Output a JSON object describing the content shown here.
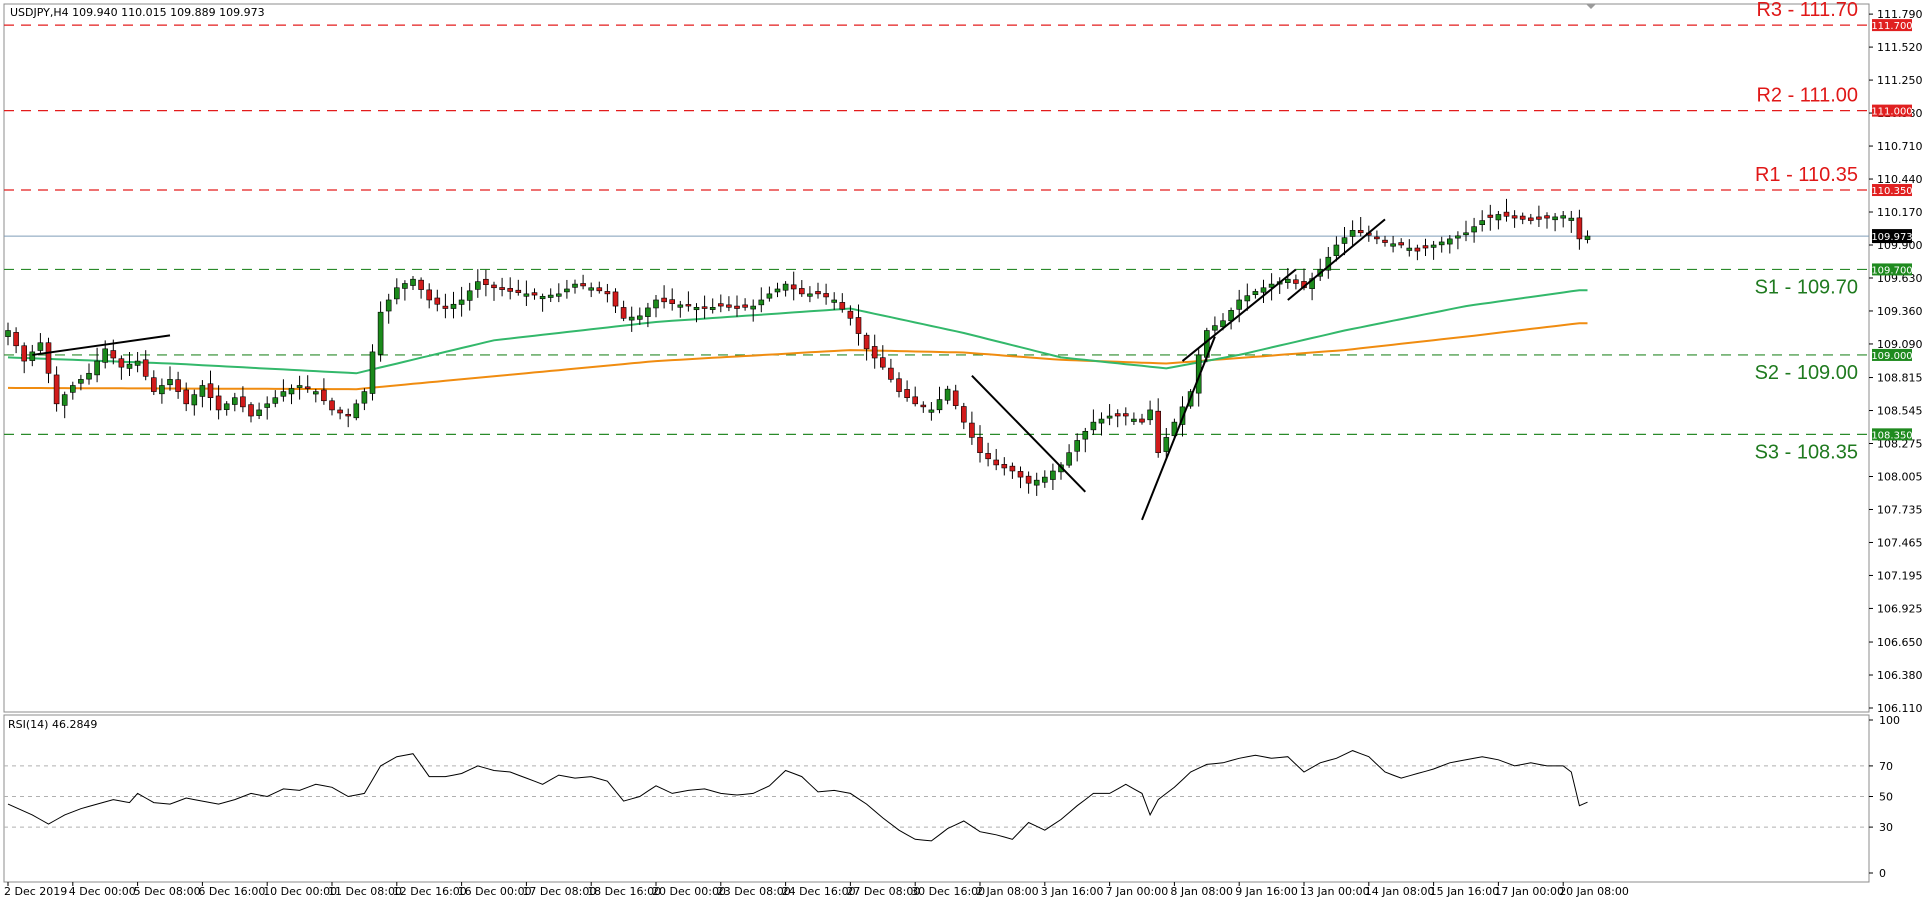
{
  "header": {
    "symbol_info": "USDJPY,H4  109.940 110.015 109.889 109.973",
    "rsi_label": "RSI(14) 46.2849"
  },
  "colors": {
    "bull": "#1b8a1b",
    "bear": "#d11b1b",
    "wick": "#000000",
    "sma_fast": "#33b86b",
    "sma_slow": "#f08c10",
    "resistance": "#e31c1c",
    "support": "#2a8a2a",
    "current": "#7f9db9",
    "rsi": "#000000"
  },
  "chart_data": [
    {
      "type": "candlestick",
      "title": "USDJPY,H4",
      "ylim": [
        106.11,
        111.84
      ],
      "y_ticks": [
        111.79,
        111.52,
        111.25,
        110.98,
        110.71,
        110.44,
        110.17,
        109.9,
        109.63,
        109.36,
        109.09,
        108.815,
        108.545,
        108.275,
        108.005,
        107.735,
        107.465,
        107.195,
        106.925,
        106.65,
        106.38,
        106.11
      ],
      "y_tick_labels": [
        "111.790",
        "111.520",
        "111.250",
        "110.980",
        "110.710",
        "110.440",
        "110.170",
        "109.900",
        "109.630",
        "109.360",
        "109.090",
        "108.815",
        "108.545",
        "108.275",
        "108.005",
        "107.735",
        "107.465",
        "107.195",
        "106.925",
        "106.650",
        "106.380",
        "106.110"
      ],
      "x_tick_labels": [
        "2 Dec 2019",
        "4 Dec 00:00",
        "5 Dec 08:00",
        "6 Dec 16:00",
        "10 Dec 00:00",
        "11 Dec 08:00",
        "12 Dec 16:00",
        "16 Dec 00:00",
        "17 Dec 08:00",
        "18 Dec 16:00",
        "20 Dec 00:00",
        "23 Dec 08:00",
        "24 Dec 16:00",
        "27 Dec 08:00",
        "30 Dec 16:00",
        "2 Jan 08:00",
        "3 Jan 16:00",
        "7 Jan 00:00",
        "8 Jan 08:00",
        "9 Jan 16:00",
        "13 Jan 00:00",
        "14 Jan 08:00",
        "15 Jan 16:00",
        "17 Jan 00:00",
        "20 Jan 08:00"
      ],
      "x_tick_bars": [
        0,
        8,
        16,
        24,
        32,
        40,
        48,
        56,
        64,
        72,
        80,
        88,
        96,
        104,
        112,
        120,
        128,
        136,
        144,
        152,
        160,
        168,
        176,
        184,
        192
      ],
      "levels": [
        {
          "label": "R3 - 111.70",
          "price": 111.7,
          "tag": "111.700",
          "kind": "resistance"
        },
        {
          "label": "R2 - 111.00",
          "price": 111.0,
          "tag": "111.000",
          "kind": "resistance"
        },
        {
          "label": "R1 - 110.35",
          "price": 110.35,
          "tag": "110.350",
          "kind": "resistance"
        },
        {
          "label": "S1 - 109.70",
          "price": 109.7,
          "tag": "109.700",
          "kind": "support"
        },
        {
          "label": "S2 - 109.00",
          "price": 109.0,
          "tag": "109.000",
          "kind": "support"
        },
        {
          "label": "S3 - 108.35",
          "price": 108.35,
          "tag": "108.350",
          "kind": "support"
        }
      ],
      "current_price": {
        "price": 109.973,
        "tag": "109.973"
      },
      "key_closes": [
        [
          0,
          109.2
        ],
        [
          2,
          108.95
        ],
        [
          4,
          109.1
        ],
        [
          6,
          108.6
        ],
        [
          8,
          108.75
        ],
        [
          10,
          108.85
        ],
        [
          12,
          109.05
        ],
        [
          14,
          108.9
        ],
        [
          16,
          108.95
        ],
        [
          18,
          108.7
        ],
        [
          20,
          108.8
        ],
        [
          22,
          108.6
        ],
        [
          24,
          108.75
        ],
        [
          26,
          108.55
        ],
        [
          28,
          108.65
        ],
        [
          30,
          108.5
        ],
        [
          32,
          108.6
        ],
        [
          34,
          108.7
        ],
        [
          36,
          108.75
        ],
        [
          38,
          108.7
        ],
        [
          40,
          108.55
        ],
        [
          42,
          108.5
        ],
        [
          44,
          108.7
        ],
        [
          46,
          109.35
        ],
        [
          48,
          109.55
        ],
        [
          50,
          109.62
        ],
        [
          52,
          109.45
        ],
        [
          54,
          109.38
        ],
        [
          56,
          109.45
        ],
        [
          58,
          109.6
        ],
        [
          60,
          109.55
        ],
        [
          62,
          109.52
        ],
        [
          64,
          109.5
        ],
        [
          66,
          109.48
        ],
        [
          68,
          109.5
        ],
        [
          70,
          109.58
        ],
        [
          72,
          109.55
        ],
        [
          74,
          109.5
        ],
        [
          76,
          109.3
        ],
        [
          78,
          109.32
        ],
        [
          80,
          109.45
        ],
        [
          82,
          109.42
        ],
        [
          84,
          109.4
        ],
        [
          86,
          109.38
        ],
        [
          88,
          109.4
        ],
        [
          90,
          109.38
        ],
        [
          92,
          109.4
        ],
        [
          94,
          109.5
        ],
        [
          96,
          109.58
        ],
        [
          98,
          109.5
        ],
        [
          100,
          109.5
        ],
        [
          102,
          109.45
        ],
        [
          104,
          109.3
        ],
        [
          106,
          109.05
        ],
        [
          108,
          108.9
        ],
        [
          110,
          108.7
        ],
        [
          112,
          108.6
        ],
        [
          114,
          108.55
        ],
        [
          116,
          108.72
        ],
        [
          118,
          108.45
        ],
        [
          120,
          108.2
        ],
        [
          122,
          108.1
        ],
        [
          124,
          108.05
        ],
        [
          126,
          107.95
        ],
        [
          128,
          108.0
        ],
        [
          130,
          108.1
        ],
        [
          132,
          108.3
        ],
        [
          134,
          108.45
        ],
        [
          136,
          108.5
        ],
        [
          138,
          108.5
        ],
        [
          140,
          108.45
        ],
        [
          141,
          108.55
        ],
        [
          142,
          108.2
        ],
        [
          144,
          108.45
        ],
        [
          146,
          108.7
        ],
        [
          147,
          109.0
        ],
        [
          148,
          109.2
        ],
        [
          150,
          109.28
        ],
        [
          152,
          109.45
        ],
        [
          154,
          109.52
        ],
        [
          156,
          109.58
        ],
        [
          158,
          109.62
        ],
        [
          160,
          109.55
        ],
        [
          162,
          109.7
        ],
        [
          164,
          109.9
        ],
        [
          166,
          110.02
        ],
        [
          168,
          109.98
        ],
        [
          170,
          109.92
        ],
        [
          172,
          109.9
        ],
        [
          174,
          109.85
        ],
        [
          176,
          109.9
        ],
        [
          178,
          109.95
        ],
        [
          180,
          110.0
        ],
        [
          182,
          110.1
        ],
        [
          184,
          110.15
        ],
        [
          186,
          110.12
        ],
        [
          188,
          110.1
        ],
        [
          190,
          110.12
        ],
        [
          192,
          110.14
        ],
        [
          193,
          110.12
        ],
        [
          194,
          109.95
        ],
        [
          195,
          109.973
        ]
      ],
      "sma_fast_points": [
        [
          0,
          108.98
        ],
        [
          20,
          108.93
        ],
        [
          43,
          108.85
        ],
        [
          60,
          109.12
        ],
        [
          80,
          109.27
        ],
        [
          104,
          109.38
        ],
        [
          118,
          109.18
        ],
        [
          130,
          108.98
        ],
        [
          143,
          108.89
        ],
        [
          152,
          109.0
        ],
        [
          165,
          109.2
        ],
        [
          180,
          109.4
        ],
        [
          194,
          109.53
        ]
      ],
      "sma_slow_points": [
        [
          0,
          108.73
        ],
        [
          43,
          108.72
        ],
        [
          80,
          108.95
        ],
        [
          104,
          109.04
        ],
        [
          118,
          109.02
        ],
        [
          130,
          108.96
        ],
        [
          143,
          108.93
        ],
        [
          165,
          109.04
        ],
        [
          180,
          109.15
        ],
        [
          194,
          109.26
        ]
      ],
      "trend_lines": [
        [
          [
            3,
            109.0
          ],
          [
            20,
            109.16
          ]
        ],
        [
          [
            119,
            108.83
          ],
          [
            133,
            107.88
          ]
        ],
        [
          [
            140,
            107.65
          ],
          [
            149,
            109.15
          ]
        ],
        [
          [
            145,
            108.95
          ],
          [
            159,
            109.7
          ]
        ],
        [
          [
            158,
            109.45
          ],
          [
            170,
            110.11
          ]
        ]
      ]
    },
    {
      "type": "line",
      "title": "RSI(14) 46.2849",
      "ylim": [
        0,
        100
      ],
      "y_ticks": [
        100,
        70,
        50,
        30,
        0
      ],
      "y_tick_labels": [
        "100",
        "70",
        "50",
        "30",
        "0"
      ],
      "key_points": [
        [
          0,
          45
        ],
        [
          3,
          38
        ],
        [
          5,
          32
        ],
        [
          7,
          38
        ],
        [
          9,
          42
        ],
        [
          11,
          45
        ],
        [
          13,
          48
        ],
        [
          15,
          46
        ],
        [
          16,
          52
        ],
        [
          18,
          46
        ],
        [
          20,
          45
        ],
        [
          22,
          49
        ],
        [
          24,
          47
        ],
        [
          26,
          45
        ],
        [
          28,
          48
        ],
        [
          30,
          52
        ],
        [
          32,
          50
        ],
        [
          34,
          55
        ],
        [
          36,
          54
        ],
        [
          38,
          58
        ],
        [
          40,
          56
        ],
        [
          42,
          50
        ],
        [
          44,
          52
        ],
        [
          46,
          70
        ],
        [
          48,
          76
        ],
        [
          50,
          78
        ],
        [
          52,
          63
        ],
        [
          54,
          63
        ],
        [
          56,
          65
        ],
        [
          58,
          70
        ],
        [
          60,
          67
        ],
        [
          62,
          66
        ],
        [
          64,
          62
        ],
        [
          66,
          58
        ],
        [
          68,
          64
        ],
        [
          70,
          62
        ],
        [
          72,
          63
        ],
        [
          74,
          60
        ],
        [
          76,
          47
        ],
        [
          78,
          50
        ],
        [
          80,
          57
        ],
        [
          82,
          52
        ],
        [
          84,
          54
        ],
        [
          86,
          55
        ],
        [
          88,
          52
        ],
        [
          90,
          51
        ],
        [
          92,
          52
        ],
        [
          94,
          57
        ],
        [
          96,
          67
        ],
        [
          98,
          63
        ],
        [
          100,
          53
        ],
        [
          102,
          54
        ],
        [
          104,
          52
        ],
        [
          106,
          45
        ],
        [
          108,
          36
        ],
        [
          110,
          28
        ],
        [
          112,
          22
        ],
        [
          114,
          21
        ],
        [
          116,
          29
        ],
        [
          118,
          34
        ],
        [
          120,
          27
        ],
        [
          122,
          25
        ],
        [
          124,
          22
        ],
        [
          126,
          33
        ],
        [
          128,
          28
        ],
        [
          130,
          35
        ],
        [
          132,
          44
        ],
        [
          134,
          52
        ],
        [
          136,
          52
        ],
        [
          138,
          58
        ],
        [
          140,
          52
        ],
        [
          141,
          38
        ],
        [
          142,
          48
        ],
        [
          144,
          56
        ],
        [
          146,
          66
        ],
        [
          148,
          71
        ],
        [
          150,
          72
        ],
        [
          152,
          75
        ],
        [
          154,
          77
        ],
        [
          156,
          75
        ],
        [
          158,
          76
        ],
        [
          160,
          66
        ],
        [
          162,
          72
        ],
        [
          164,
          75
        ],
        [
          166,
          80
        ],
        [
          168,
          76
        ],
        [
          170,
          66
        ],
        [
          172,
          62
        ],
        [
          174,
          65
        ],
        [
          176,
          68
        ],
        [
          178,
          72
        ],
        [
          180,
          74
        ],
        [
          182,
          76
        ],
        [
          184,
          74
        ],
        [
          186,
          70
        ],
        [
          188,
          72
        ],
        [
          190,
          70
        ],
        [
          192,
          70
        ],
        [
          193,
          66
        ],
        [
          194,
          44
        ],
        [
          195,
          46.28
        ]
      ]
    }
  ]
}
